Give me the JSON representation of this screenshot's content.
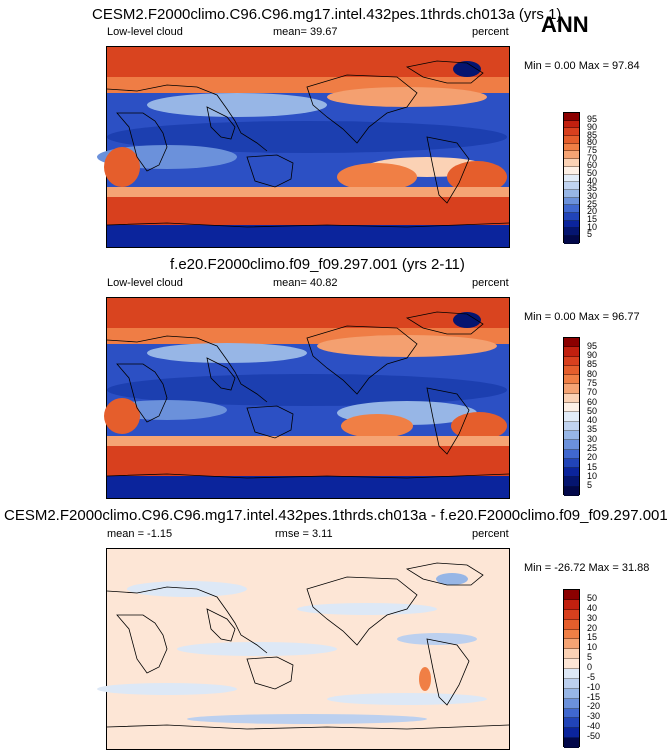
{
  "season": "ANN",
  "panels": [
    {
      "title": "CESM2.F2000climo.C96.C96.mg17.intel.432pes.1thrds.ch013a (yrs 1)",
      "left_label": "Low-level cloud",
      "center_label": "mean=  39.67",
      "right_label": "percent",
      "minmax": "Min =   0.00 Max =  97.84",
      "colorbar_labels": [
        "95",
        "90",
        "85",
        "80",
        "75",
        "70",
        "60",
        "50",
        "40",
        "35",
        "30",
        "25",
        "20",
        "15",
        "10",
        "5"
      ],
      "colors": [
        "#8b0000",
        "#c1200f",
        "#d8401e",
        "#e55e2c",
        "#f07f45",
        "#f5a474",
        "#fbd2b5",
        "#fdf0e6",
        "#e2ecf8",
        "#c0d3f0",
        "#97b6e6",
        "#6b91db",
        "#4068cf",
        "#2144b8",
        "#0b249c",
        "#051570",
        "#02084a"
      ]
    },
    {
      "title": "f.e20.F2000climo.f09_f09.297.001 (yrs 2-11)",
      "left_label": "Low-level cloud",
      "center_label": "mean=  40.82",
      "right_label": "percent",
      "minmax": "Min =   0.00 Max =  96.77",
      "colorbar_labels": [
        "95",
        "90",
        "85",
        "80",
        "75",
        "70",
        "60",
        "50",
        "40",
        "35",
        "30",
        "25",
        "20",
        "15",
        "10",
        "5"
      ],
      "colors": [
        "#8b0000",
        "#c1200f",
        "#d8401e",
        "#e55e2c",
        "#f07f45",
        "#f5a474",
        "#fbd2b5",
        "#fdf0e6",
        "#e2ecf8",
        "#c0d3f0",
        "#97b6e6",
        "#6b91db",
        "#4068cf",
        "#2144b8",
        "#0b249c",
        "#051570",
        "#02084a"
      ]
    },
    {
      "title": "CESM2.F2000climo.C96.C96.mg17.intel.432pes.1thrds.ch013a - f.e20.F2000climo.f09_f09.297.001",
      "left_label": "mean =  -1.15",
      "center_label": "rmse =   3.11",
      "right_label": "percent",
      "minmax": "Min = -26.72 Max =  31.88",
      "colorbar_labels": [
        "50",
        "40",
        "30",
        "20",
        "15",
        "10",
        "5",
        "0",
        "-5",
        "-10",
        "-15",
        "-20",
        "-30",
        "-40",
        "-50"
      ],
      "colors": [
        "#8b0000",
        "#c1200f",
        "#d8401e",
        "#e55e2c",
        "#f07f45",
        "#f5a474",
        "#fbd2b5",
        "#fde6d6",
        "#dde8f6",
        "#bcd0ef",
        "#97b6e6",
        "#6b91db",
        "#4068cf",
        "#2144b8",
        "#0b249c",
        "#02084a"
      ]
    }
  ]
}
